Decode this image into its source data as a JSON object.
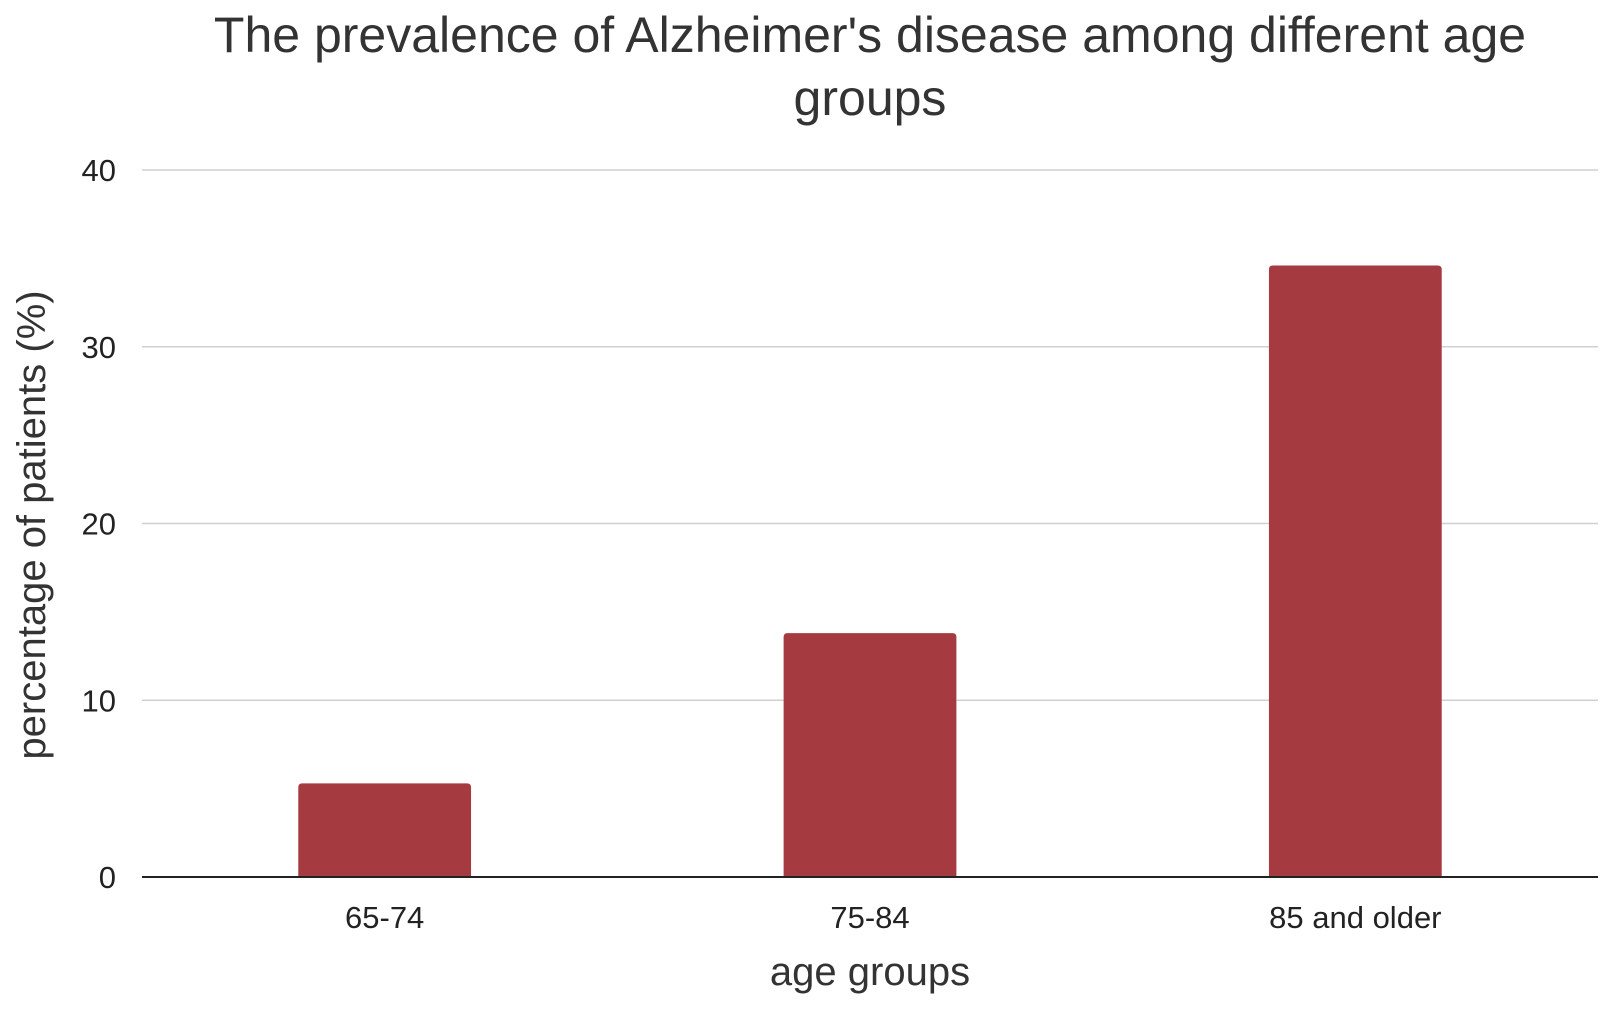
{
  "chart_data": {
    "type": "bar",
    "title_lines": [
      "The prevalence of Alzheimer's disease among different age",
      "groups"
    ],
    "xlabel": "age groups",
    "ylabel": "percentage of patients (%)",
    "categories": [
      "65-74",
      "75-84",
      "85 and older"
    ],
    "values": [
      5.3,
      13.8,
      34.6
    ],
    "ylim": [
      0,
      40
    ],
    "yticks": [
      0,
      10,
      20,
      30,
      40
    ],
    "ytick_labels": [
      "0",
      "10",
      "20",
      "30",
      "40"
    ],
    "bar_color": "#a63a41",
    "grid": true,
    "legend": "none"
  }
}
